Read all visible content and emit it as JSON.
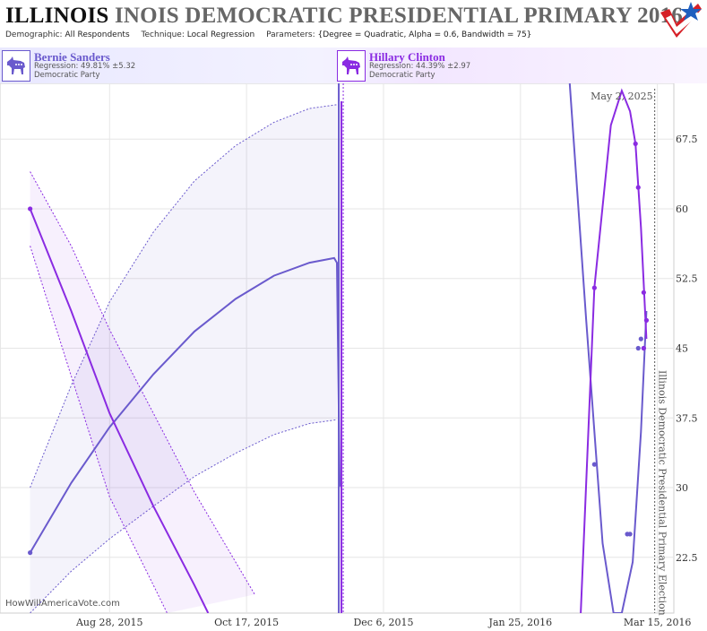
{
  "header": {
    "title_state": "ILLINOIS",
    "title_rest": "INOIS DEMOCRATIC PRESIDENTIAL PRIMARY 2016",
    "params": [
      {
        "label": "Demographic:",
        "value": "All Respondents"
      },
      {
        "label": "Technique:",
        "value": "Local Regression"
      },
      {
        "label": "Parameters:",
        "value": "{Degree = Quadratic, Alpha = 0.6, Bandwidth = 75}"
      }
    ],
    "logo_icon": "star-checkmark-logo"
  },
  "candidates": [
    {
      "name": "Bernie Sanders",
      "regression": "Regression: 49.81% ±5.32",
      "party": "Democratic Party",
      "color": "#6a5acd",
      "icon": "donkey-icon"
    },
    {
      "name": "Hillary Clinton",
      "regression": "Regression: 44.39% ±2.97",
      "party": "Democratic Party",
      "color": "#8a2be2",
      "icon": "donkey-icon"
    }
  ],
  "watermark": "HowWillAmericaVote.com",
  "chart_data": {
    "type": "line",
    "title": "ILLINOIS INOIS DEMOCRATIC PRESIDENTIAL PRIMARY 2016",
    "xlabel": "",
    "ylabel": "",
    "x_tick_labels": [
      "Aug 28, 2015",
      "Oct 17, 2015",
      "Dec 6, 2015",
      "Jan 25, 2016",
      "Mar 15, 2016"
    ],
    "x_tick_dates": [
      "2015-08-28",
      "2015-10-17",
      "2015-12-06",
      "2016-01-25",
      "2016-03-15"
    ],
    "xlim": [
      "2015-07-19",
      "2016-03-21"
    ],
    "y_ticks": [
      22.5,
      30,
      37.5,
      45,
      52.5,
      60,
      67.5
    ],
    "ylim": [
      16.5,
      73.5
    ],
    "y_axis_side": "right",
    "grid": true,
    "annotations": {
      "current_date": "May 2, 2025",
      "election_label": "Illinois Democratic Presidential Primary Election",
      "election_date": "2016-03-15"
    },
    "series": [
      {
        "name": "Bernie Sanders",
        "color": "#6a5acd",
        "points": [
          [
            "2015-07-30",
            23
          ],
          [
            "2016-02-21",
            32.5
          ],
          [
            "2016-03-04",
            25
          ],
          [
            "2016-03-05",
            25
          ],
          [
            "2016-03-08",
            45
          ],
          [
            "2016-03-09",
            46
          ],
          [
            "2016-03-10",
            45
          ]
        ],
        "trend": [
          [
            "2015-07-30",
            23
          ],
          [
            "2015-08-14",
            30.5
          ],
          [
            "2015-08-28",
            36.5
          ],
          [
            "2015-09-13",
            42.2
          ],
          [
            "2015-09-28",
            46.8
          ],
          [
            "2015-10-13",
            50.3
          ],
          [
            "2015-10-27",
            52.8
          ],
          [
            "2015-11-09",
            54.2
          ],
          [
            "2015-11-18",
            54.7
          ],
          [
            "2015-11-19",
            54.2
          ],
          [
            "2015-11-20",
            30.2
          ],
          [
            "2015-11-21",
            30.5
          ]
        ],
        "trend_late": [
          [
            "2016-02-12",
            73.5
          ],
          [
            "2016-02-18",
            48
          ],
          [
            "2016-02-24",
            24
          ],
          [
            "2016-02-28",
            16.5
          ],
          [
            "2016-03-02",
            16.5
          ],
          [
            "2016-03-06",
            22
          ],
          [
            "2016-03-09",
            36
          ],
          [
            "2016-03-11",
            49
          ]
        ],
        "band_upper": [
          [
            "2015-07-30",
            30
          ],
          [
            "2015-08-14",
            41
          ],
          [
            "2015-08-28",
            50
          ],
          [
            "2015-09-13",
            57.5
          ],
          [
            "2015-09-28",
            63
          ],
          [
            "2015-10-13",
            66.8
          ],
          [
            "2015-10-27",
            69.3
          ],
          [
            "2015-11-09",
            70.8
          ],
          [
            "2015-11-19",
            71.2
          ]
        ],
        "band_lower": [
          [
            "2015-07-30",
            16.5
          ],
          [
            "2015-08-14",
            21
          ],
          [
            "2015-08-28",
            24.5
          ],
          [
            "2015-09-13",
            28
          ],
          [
            "2015-09-28",
            31.2
          ],
          [
            "2015-10-13",
            33.7
          ],
          [
            "2015-10-27",
            35.7
          ],
          [
            "2015-11-09",
            36.9
          ],
          [
            "2015-11-19",
            37.3
          ]
        ]
      },
      {
        "name": "Hillary Clinton",
        "color": "#8a2be2",
        "points": [
          [
            "2015-07-30",
            60
          ],
          [
            "2016-02-21",
            51.5
          ],
          [
            "2016-03-07",
            67
          ],
          [
            "2016-03-08",
            62.3
          ],
          [
            "2016-03-10",
            51
          ],
          [
            "2016-03-11",
            48
          ],
          [
            "2016-03-10",
            45
          ]
        ],
        "trend": [
          [
            "2015-07-30",
            60
          ],
          [
            "2015-08-14",
            49
          ],
          [
            "2015-08-28",
            38
          ],
          [
            "2015-09-13",
            28
          ],
          [
            "2015-09-28",
            19.5
          ],
          [
            "2015-10-03",
            16.5
          ]
        ],
        "trend_late": [
          [
            "2016-02-16",
            16.5
          ],
          [
            "2016-02-21",
            51.5
          ],
          [
            "2016-02-27",
            69
          ],
          [
            "2016-03-02",
            72.7
          ],
          [
            "2016-03-05",
            70.5
          ],
          [
            "2016-03-07",
            67
          ],
          [
            "2016-03-09",
            58
          ],
          [
            "2016-03-11",
            46
          ]
        ],
        "band_upper": [
          [
            "2015-07-30",
            64
          ],
          [
            "2015-08-14",
            56
          ],
          [
            "2015-08-28",
            47
          ],
          [
            "2015-09-13",
            38
          ],
          [
            "2015-09-28",
            29.5
          ],
          [
            "2015-10-13",
            22
          ],
          [
            "2015-10-20",
            18.5
          ]
        ],
        "band_lower": [
          [
            "2015-07-30",
            56
          ],
          [
            "2015-08-14",
            42
          ],
          [
            "2015-08-28",
            29
          ],
          [
            "2015-09-13",
            19.5
          ],
          [
            "2015-09-18",
            16.5
          ]
        ]
      }
    ]
  }
}
